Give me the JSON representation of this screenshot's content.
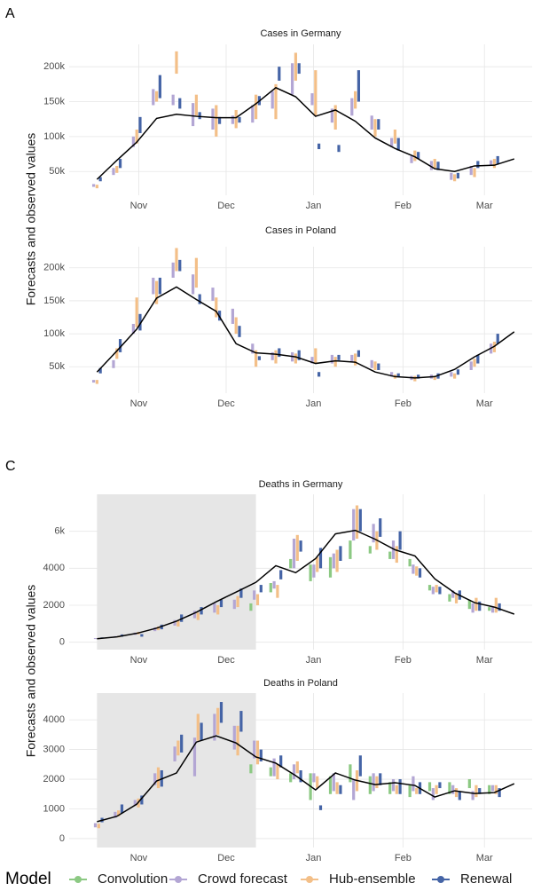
{
  "panels": [
    {
      "label": "A",
      "ylabel": "Forecasts and observed values"
    },
    {
      "label": "C",
      "ylabel": "Forecasts and observed values"
    }
  ],
  "legend": {
    "title": "Model"
  },
  "chart_data": [
    {
      "type": "forecast",
      "title": "Cases in Germany",
      "grid": true,
      "x": [
        0,
        1,
        2,
        3,
        4,
        5,
        6,
        7,
        8,
        9,
        10,
        11,
        12,
        13,
        14,
        15,
        16,
        17,
        18,
        19,
        20,
        21
      ],
      "xlim": [
        -1.4,
        21.9
      ],
      "xticks": [
        {
          "value": 2.1,
          "label": "Nov"
        },
        {
          "value": 6.5,
          "label": "Dec"
        },
        {
          "value": 10.9,
          "label": "Jan"
        },
        {
          "value": 15.4,
          "label": "Feb"
        },
        {
          "value": 19.5,
          "label": "Mar"
        }
      ],
      "ylim": [
        16000,
        232000
      ],
      "yticks": [
        {
          "value": 50000,
          "label": "50k"
        },
        {
          "value": 100000,
          "label": "100k"
        },
        {
          "value": 150000,
          "label": "150k"
        },
        {
          "value": 200000,
          "label": "200k"
        }
      ],
      "observed_color": "#000000",
      "observed": [
        38700,
        66000,
        92000,
        126000,
        132000,
        129000,
        127000,
        127000,
        147000,
        170000,
        157000,
        129000,
        138000,
        122000,
        98000,
        83000,
        71000,
        54000,
        50000,
        58000,
        59000,
        68000
      ],
      "series": [
        {
          "name": "Crowd forecast",
          "color": "#b3a6d4",
          "low": [
            28000,
            45000,
            85000,
            145000,
            145000,
            115000,
            110000,
            118000,
            120000,
            140000,
            160000,
            145000,
            120000,
            130000,
            110000,
            85000,
            62000,
            52000,
            38000,
            45000,
            58000,
            null
          ],
          "high": [
            32000,
            55000,
            100000,
            168000,
            160000,
            148000,
            140000,
            130000,
            145000,
            165000,
            205000,
            162000,
            140000,
            155000,
            130000,
            98000,
            72000,
            65000,
            48000,
            58000,
            66000,
            null
          ]
        },
        {
          "name": "Hub-ensemble",
          "color": "#f3bf88",
          "low": [
            26000,
            48000,
            90000,
            150000,
            190000,
            130000,
            100000,
            112000,
            125000,
            125000,
            180000,
            130000,
            110000,
            140000,
            100000,
            90000,
            65000,
            55000,
            36000,
            42000,
            55000,
            null
          ],
          "high": [
            31000,
            58000,
            110000,
            165000,
            222000,
            160000,
            145000,
            138000,
            160000,
            175000,
            220000,
            195000,
            145000,
            165000,
            125000,
            110000,
            80000,
            68000,
            46000,
            55000,
            68000,
            null
          ]
        },
        {
          "name": "Renewal",
          "color": "#4564a6",
          "low": [
            36000,
            55000,
            105000,
            155000,
            140000,
            125000,
            118000,
            120000,
            145000,
            180000,
            190000,
            82000,
            78000,
            150000,
            110000,
            80000,
            68000,
            52000,
            40000,
            55000,
            60000,
            null
          ],
          "high": [
            42000,
            68000,
            128000,
            188000,
            155000,
            135000,
            128000,
            128000,
            158000,
            200000,
            205000,
            90000,
            88000,
            195000,
            125000,
            98000,
            78000,
            64000,
            48000,
            65000,
            72000,
            null
          ]
        }
      ]
    },
    {
      "type": "forecast",
      "title": "Cases in Poland",
      "grid": true,
      "x": [
        0,
        1,
        2,
        3,
        4,
        5,
        6,
        7,
        8,
        9,
        10,
        11,
        12,
        13,
        14,
        15,
        16,
        17,
        18,
        19,
        20,
        21
      ],
      "xlim": [
        -1.4,
        21.9
      ],
      "xticks": [
        {
          "value": 2.1,
          "label": "Nov"
        },
        {
          "value": 6.5,
          "label": "Dec"
        },
        {
          "value": 10.9,
          "label": "Jan"
        },
        {
          "value": 15.4,
          "label": "Feb"
        },
        {
          "value": 19.5,
          "label": "Mar"
        }
      ],
      "ylim": [
        10000,
        232000
      ],
      "yticks": [
        {
          "value": 50000,
          "label": "50k"
        },
        {
          "value": 100000,
          "label": "100k"
        },
        {
          "value": 150000,
          "label": "150k"
        },
        {
          "value": 200000,
          "label": "200k"
        }
      ],
      "observed_color": "#000000",
      "observed": [
        42000,
        74000,
        107000,
        154000,
        171000,
        152000,
        134000,
        85000,
        71000,
        69000,
        65000,
        55000,
        59000,
        57000,
        42000,
        35000,
        33000,
        35000,
        46000,
        65000,
        81000,
        103000
      ],
      "series": [
        {
          "name": "Crowd forecast",
          "color": "#b3a6d4",
          "low": [
            26000,
            48000,
            100000,
            160000,
            185000,
            160000,
            150000,
            115000,
            70000,
            60000,
            58000,
            55000,
            55000,
            58000,
            48000,
            35000,
            30000,
            32000,
            35000,
            45000,
            70000,
            null
          ],
          "high": [
            30000,
            60000,
            115000,
            185000,
            208000,
            190000,
            170000,
            138000,
            85000,
            72000,
            72000,
            65000,
            68000,
            68000,
            60000,
            42000,
            36000,
            38000,
            42000,
            58000,
            85000,
            null
          ]
        },
        {
          "name": "Hub-ensemble",
          "color": "#f3bf88",
          "low": [
            24000,
            62000,
            110000,
            145000,
            195000,
            170000,
            125000,
            100000,
            50000,
            55000,
            55000,
            55000,
            50000,
            52000,
            45000,
            32000,
            28000,
            30000,
            32000,
            50000,
            72000,
            null
          ],
          "high": [
            30000,
            78000,
            155000,
            180000,
            230000,
            215000,
            155000,
            125000,
            75000,
            75000,
            70000,
            78000,
            65000,
            70000,
            58000,
            38000,
            36000,
            36000,
            40000,
            62000,
            88000,
            null
          ]
        },
        {
          "name": "Renewal",
          "color": "#4564a6",
          "low": [
            40000,
            72000,
            105000,
            160000,
            195000,
            145000,
            120000,
            95000,
            60000,
            65000,
            60000,
            35000,
            60000,
            65000,
            45000,
            34000,
            32000,
            32000,
            38000,
            55000,
            85000,
            null
          ],
          "high": [
            48000,
            92000,
            130000,
            185000,
            212000,
            160000,
            135000,
            112000,
            66000,
            78000,
            75000,
            42000,
            68000,
            75000,
            55000,
            40000,
            38000,
            40000,
            46000,
            68000,
            100000,
            null
          ]
        }
      ]
    },
    {
      "type": "forecast",
      "title": "Deaths in Germany",
      "grid": true,
      "shaded_x": [
        0,
        8
      ],
      "shade_color": "#e6e6e6",
      "x": [
        0,
        1,
        2,
        3,
        4,
        5,
        6,
        7,
        8,
        9,
        10,
        11,
        12,
        13,
        14,
        15,
        16,
        17,
        18,
        19,
        20,
        21
      ],
      "xlim": [
        -1.4,
        21.9
      ],
      "xticks": [
        {
          "value": 2.1,
          "label": "Nov"
        },
        {
          "value": 6.5,
          "label": "Dec"
        },
        {
          "value": 10.9,
          "label": "Jan"
        },
        {
          "value": 15.4,
          "label": "Feb"
        },
        {
          "value": 19.5,
          "label": "Mar"
        }
      ],
      "ylim": [
        -400,
        8000
      ],
      "yticks": [
        0,
        2000,
        4000,
        {
          "value": 6000,
          "label": "6k"
        }
      ],
      "observed_color": "#000000",
      "observed": [
        190,
        290,
        480,
        760,
        1140,
        1620,
        2190,
        2710,
        3240,
        4140,
        3760,
        4520,
        5860,
        6050,
        5570,
        5000,
        4670,
        3430,
        2670,
        2140,
        1900,
        1520
      ],
      "series": [
        {
          "name": "Convolution",
          "color": "#8cc983",
          "low": [
            null,
            null,
            null,
            null,
            null,
            null,
            null,
            null,
            1700,
            2700,
            4000,
            3300,
            3500,
            4500,
            4800,
            4500,
            4100,
            2800,
            2200,
            1800,
            1700,
            null
          ],
          "high": [
            null,
            null,
            null,
            null,
            null,
            null,
            null,
            null,
            2100,
            3200,
            4500,
            4200,
            4600,
            5500,
            5200,
            4900,
            4500,
            3100,
            2600,
            2300,
            1900,
            null
          ]
        },
        {
          "name": "Crowd forecast",
          "color": "#b3a6d4",
          "low": [
            180,
            250,
            400,
            600,
            900,
            1300,
            1600,
            1800,
            2300,
            2900,
            4000,
            3500,
            4000,
            5500,
            5400,
            4500,
            3700,
            2600,
            2400,
            1600,
            1600,
            null
          ],
          "high": [
            220,
            330,
            520,
            800,
            1200,
            1700,
            2100,
            2300,
            2800,
            3300,
            5600,
            4200,
            4800,
            7200,
            6400,
            5500,
            4200,
            3000,
            2800,
            2100,
            1900,
            null
          ]
        },
        {
          "name": "Hub-ensemble",
          "color": "#f3bf88",
          "low": [
            170,
            260,
            420,
            650,
            850,
            1200,
            1500,
            1900,
            2000,
            2400,
            4400,
            3800,
            3800,
            5600,
            5000,
            4300,
            3600,
            2700,
            2100,
            1700,
            1600,
            null
          ],
          "high": [
            230,
            340,
            560,
            850,
            1150,
            1600,
            2000,
            2500,
            2600,
            3100,
            5800,
            4600,
            5000,
            7400,
            6000,
            5200,
            4100,
            3100,
            2600,
            2400,
            2400,
            null
          ]
        },
        {
          "name": "Renewal",
          "color": "#4564a6",
          "low": [
            200,
            300,
            300,
            700,
            1100,
            1500,
            1900,
            2400,
            2700,
            3400,
            4900,
            4000,
            4400,
            6000,
            5700,
            5000,
            3500,
            2600,
            2300,
            1700,
            1700,
            null
          ],
          "high": [
            260,
            420,
            440,
            950,
            1500,
            1900,
            2300,
            2900,
            3100,
            3900,
            5500,
            5100,
            5200,
            7200,
            6700,
            6000,
            4000,
            3000,
            2800,
            2200,
            2100,
            null
          ]
        }
      ]
    },
    {
      "type": "forecast",
      "title": "Deaths in Poland",
      "grid": true,
      "shaded_x": [
        0,
        8
      ],
      "shade_color": "#e6e6e6",
      "x": [
        0,
        1,
        2,
        3,
        4,
        5,
        6,
        7,
        8,
        9,
        10,
        11,
        12,
        13,
        14,
        15,
        16,
        17,
        18,
        19,
        20,
        21
      ],
      "xlim": [
        -1.4,
        21.9
      ],
      "xticks": [
        {
          "value": 2.1,
          "label": "Nov"
        },
        {
          "value": 6.5,
          "label": "Dec"
        },
        {
          "value": 10.9,
          "label": "Jan"
        },
        {
          "value": 15.4,
          "label": "Feb"
        },
        {
          "value": 19.5,
          "label": "Mar"
        }
      ],
      "ylim": [
        -300,
        4900
      ],
      "yticks": [
        0,
        1000,
        2000,
        3000,
        4000
      ],
      "observed_color": "#000000",
      "observed": [
        570,
        750,
        1160,
        1940,
        2210,
        3250,
        3460,
        3220,
        2750,
        2540,
        2120,
        1640,
        2210,
        1970,
        1820,
        1880,
        1790,
        1400,
        1610,
        1520,
        1550,
        1850
      ],
      "series": [
        {
          "name": "Convolution",
          "color": "#8cc983",
          "low": [
            null,
            null,
            null,
            null,
            null,
            null,
            null,
            null,
            2200,
            2100,
            1900,
            1300,
            1500,
            1900,
            1500,
            1500,
            1400,
            1600,
            1500,
            1700,
            1500,
            null
          ],
          "high": [
            null,
            null,
            null,
            null,
            null,
            null,
            null,
            null,
            2500,
            2400,
            2200,
            2200,
            2100,
            2500,
            2100,
            1900,
            1800,
            1900,
            1900,
            2000,
            1800,
            null
          ]
        },
        {
          "name": "Crowd forecast",
          "color": "#b3a6d4",
          "low": [
            380,
            700,
            1100,
            1800,
            2600,
            2100,
            3300,
            3000,
            2700,
            2100,
            2000,
            1900,
            1600,
            1300,
            1600,
            1600,
            1600,
            1300,
            1500,
            1300,
            1600,
            null
          ],
          "high": [
            520,
            900,
            1300,
            2200,
            3100,
            3400,
            4200,
            3800,
            3300,
            2700,
            2500,
            2200,
            2200,
            2000,
            2200,
            2000,
            2100,
            1700,
            1800,
            1600,
            1800,
            null
          ]
        },
        {
          "name": "Hub-ensemble",
          "color": "#f3bf88",
          "low": [
            350,
            750,
            1050,
            1700,
            2800,
            3300,
            3500,
            2800,
            2500,
            2000,
            2200,
            1700,
            1500,
            1600,
            1700,
            1500,
            1500,
            1500,
            1400,
            1400,
            1500,
            null
          ],
          "high": [
            500,
            950,
            1350,
            2400,
            3300,
            4200,
            4400,
            3800,
            3300,
            2500,
            2600,
            2100,
            1900,
            2300,
            2100,
            1800,
            1700,
            1800,
            1700,
            1800,
            1800,
            null
          ]
        },
        {
          "name": "Renewal",
          "color": "#4564a6",
          "low": [
            550,
            850,
            1150,
            1750,
            2900,
            3300,
            3900,
            3600,
            2600,
            2400,
            1900,
            960,
            1500,
            2100,
            1800,
            1500,
            1500,
            1700,
            1300,
            1500,
            1400,
            null
          ],
          "high": [
            700,
            1150,
            1450,
            2300,
            3500,
            3900,
            4600,
            4300,
            3000,
            2800,
            2300,
            1120,
            1800,
            2800,
            2200,
            2000,
            1900,
            1900,
            1600,
            1700,
            1700,
            null
          ]
        }
      ]
    }
  ]
}
